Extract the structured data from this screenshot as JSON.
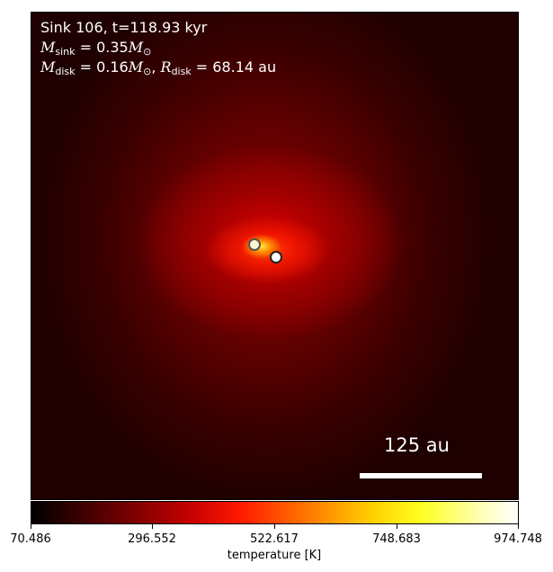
{
  "annotation": {
    "line1": "Sink 106, t=118.93 kyr",
    "m_sink_symbol": "M",
    "m_sink_subscript": "sink",
    "m_sink_value": " = 0.35",
    "m_disk_symbol": "M",
    "m_disk_subscript": "disk",
    "m_disk_value": " = 0.16",
    "r_disk_symbol": "R",
    "r_disk_subscript": "disk",
    "r_disk_value": " = 68.14",
    "r_disk_unit": " au",
    "sun_symbol": "M",
    "sun_subscript": "⊙"
  },
  "scale_bar": {
    "label": "125 au"
  },
  "colorbar": {
    "label": "temperature [K]",
    "ticks": [
      "70.486",
      "296.552",
      "522.617",
      "748.683",
      "974.748"
    ],
    "min": 70.486,
    "max": 974.748
  },
  "colormap": [
    "#000000",
    "#6a0000",
    "#c80000",
    "#ff1a00",
    "#ff8000",
    "#ffd000",
    "#ffff20",
    "#ffffff"
  ]
}
